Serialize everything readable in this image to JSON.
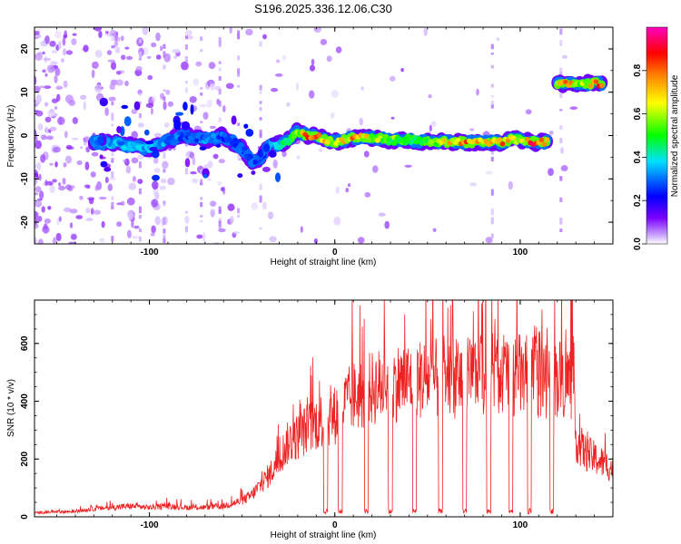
{
  "title": "S196.2025.336.12.06.C30",
  "chart_data": [
    {
      "type": "heatmap",
      "title": "S196.2025.336.12.06.C30",
      "xlabel": "Height of straight line (km)",
      "ylabel": "Frequency (Hz)",
      "xlim": [
        -162,
        150
      ],
      "ylim": [
        -25,
        25
      ],
      "x_ticks": [
        -100,
        0,
        100
      ],
      "y_ticks": [
        -20,
        -10,
        0,
        10,
        20
      ],
      "colorbar": {
        "label": "Normalized spectral amplitude",
        "range": [
          0.0,
          1.0
        ],
        "ticks": [
          "0.0",
          "0.2",
          "0.4",
          "0.6",
          "0.8"
        ],
        "colors": [
          "#ffffff",
          "#7a00ff",
          "#0000ff",
          "#00e0ff",
          "#00ff00",
          "#ffff00",
          "#ff8000",
          "#ff0000",
          "#ff00c0"
        ]
      },
      "ridge": {
        "description": "dominant frequency track (Hz) vs height (km)",
        "x": [
          -130,
          -115,
          -100,
          -90,
          -80,
          -70,
          -60,
          -50,
          -45,
          -40,
          -35,
          -30,
          -25,
          -20,
          -15,
          -10,
          -5,
          0,
          5,
          10,
          20,
          30,
          40,
          50,
          60,
          70,
          80,
          90,
          95,
          100,
          105,
          110,
          115
        ],
        "frequency": [
          -1.5,
          -2,
          -3,
          -1,
          0,
          -1,
          0,
          -3,
          -6,
          -5,
          -2,
          -2,
          -1,
          1,
          0,
          0,
          -1,
          -1.5,
          -1,
          -0.5,
          -0.5,
          -1,
          -1,
          -1.5,
          -1.5,
          -1.5,
          -1.5,
          -1.5,
          -1,
          -1,
          -1.5,
          -1.5,
          -1.5
        ],
        "amplitude": [
          0.35,
          0.4,
          0.4,
          0.35,
          0.3,
          0.35,
          0.3,
          0.3,
          0.3,
          0.3,
          0.35,
          0.45,
          0.5,
          0.6,
          0.85,
          0.9,
          0.7,
          0.65,
          0.75,
          0.8,
          0.65,
          0.6,
          0.55,
          0.6,
          0.7,
          0.85,
          0.7,
          0.85,
          0.7,
          0.6,
          0.9,
          0.9,
          0.7
        ]
      },
      "ridge_upper": {
        "description": "secondary track above 118 km",
        "x": [
          120,
          125,
          130,
          135,
          140,
          145
        ],
        "frequency": [
          12,
          12,
          12,
          12,
          12,
          12
        ],
        "amplitude": [
          0.7,
          0.9,
          0.7,
          0.6,
          0.9,
          0.8
        ]
      }
    },
    {
      "type": "line",
      "xlabel": "Height of straight line (km)",
      "ylabel": "SNR (10 * v/v)",
      "xlim": [
        -162,
        150
      ],
      "ylim": [
        0,
        750
      ],
      "x_ticks": [
        -100,
        0,
        100
      ],
      "y_ticks": [
        0,
        200,
        400,
        600
      ],
      "series": [
        {
          "name": "SNR",
          "color": "#ee2222",
          "envelope_x": [
            -162,
            -140,
            -130,
            -120,
            -110,
            -100,
            -90,
            -80,
            -70,
            -60,
            -50,
            -45,
            -40,
            -35,
            -30,
            -25,
            -20,
            -15,
            -10,
            -5,
            0,
            5,
            10,
            15,
            20,
            30,
            40,
            50,
            60,
            70,
            80,
            90,
            100,
            110,
            120,
            128,
            130,
            135,
            140,
            145,
            150
          ],
          "envelope_y": [
            15,
            20,
            30,
            35,
            40,
            35,
            40,
            35,
            35,
            40,
            60,
            80,
            120,
            160,
            220,
            280,
            300,
            330,
            350,
            370,
            380,
            420,
            450,
            460,
            480,
            500,
            510,
            520,
            510,
            520,
            530,
            540,
            530,
            520,
            520,
            510,
            290,
            240,
            220,
            200,
            180
          ],
          "peak_max": 750,
          "dropouts_x": [
            -5,
            3,
            17,
            30,
            43,
            57,
            70,
            83,
            95,
            105,
            117
          ],
          "dropout_floor": 20
        }
      ]
    }
  ]
}
